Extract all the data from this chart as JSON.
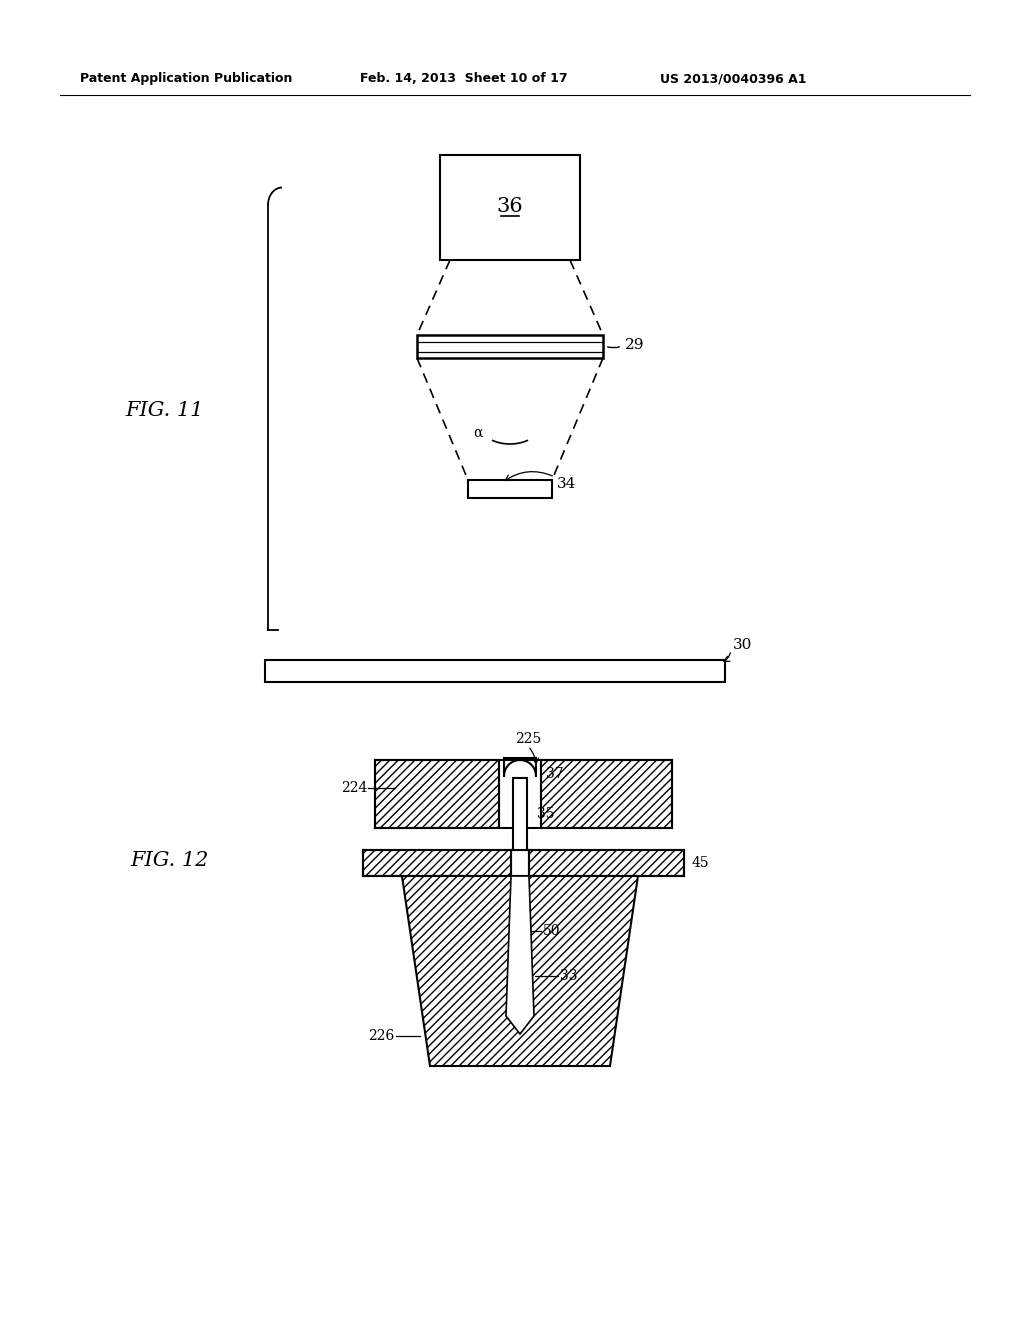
{
  "bg_color": "#ffffff",
  "header_left": "Patent Application Publication",
  "header_mid": "Feb. 14, 2013  Sheet 10 of 17",
  "header_right": "US 2013/0040396 A1",
  "fig11_label": "FIG. 11",
  "fig12_label": "FIG. 12",
  "label_36": "36",
  "label_29": "29",
  "label_34": "34",
  "label_alpha": "α",
  "label_30": "30",
  "label_224": "224",
  "label_225": "225",
  "label_37": "37",
  "label_35": "35",
  "label_45": "45",
  "label_50": "50",
  "label_33": "33",
  "label_226": "226"
}
